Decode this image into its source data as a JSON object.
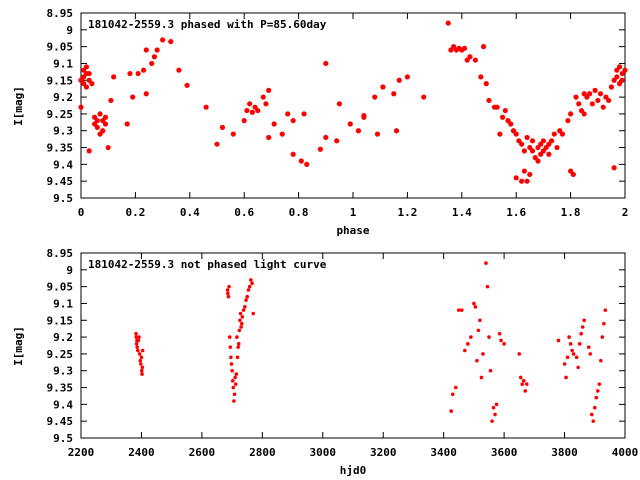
{
  "chart_data": [
    {
      "type": "scatter",
      "title": "181042-2559.3 phased with P=85.60day",
      "xlabel": "phase",
      "ylabel": "I[mag]",
      "xlim": [
        0,
        2
      ],
      "ylim": [
        8.95,
        9.5
      ],
      "y_inverted": true,
      "grid": false,
      "marker_color": "#ff0000",
      "xticks": [
        0,
        0.2,
        0.4,
        0.6,
        0.8,
        1,
        1.2,
        1.4,
        1.6,
        1.8,
        2
      ],
      "xtick_labels": [
        "0",
        "0.2",
        "0.4",
        "0.6",
        "0.8",
        "1",
        "1.2",
        "1.4",
        "1.6",
        "1.8",
        "2"
      ],
      "yticks": [
        8.95,
        9,
        9.05,
        9.1,
        9.15,
        9.2,
        9.25,
        9.3,
        9.35,
        9.4,
        9.45,
        9.5
      ],
      "ytick_labels": [
        "8.95",
        "9",
        "9.05",
        "9.1",
        "9.15",
        "9.2",
        "9.25",
        "9.3",
        "9.35",
        "9.4",
        "9.45",
        "9.5"
      ],
      "points": [
        [
          0.0,
          9.23
        ],
        [
          0.0,
          9.15
        ],
        [
          0.01,
          9.12
        ],
        [
          0.01,
          9.14
        ],
        [
          0.01,
          9.16
        ],
        [
          0.02,
          9.13
        ],
        [
          0.02,
          9.17
        ],
        [
          0.02,
          9.11
        ],
        [
          0.03,
          9.15
        ],
        [
          0.03,
          9.13
        ],
        [
          0.03,
          9.36
        ],
        [
          0.04,
          9.16
        ],
        [
          0.05,
          9.26
        ],
        [
          0.05,
          9.28
        ],
        [
          0.06,
          9.27
        ],
        [
          0.06,
          9.29
        ],
        [
          0.07,
          9.31
        ],
        [
          0.07,
          9.25
        ],
        [
          0.08,
          9.27
        ],
        [
          0.08,
          9.3
        ],
        [
          0.09,
          9.26
        ],
        [
          0.09,
          9.28
        ],
        [
          0.1,
          9.35
        ],
        [
          0.11,
          9.21
        ],
        [
          0.12,
          9.14
        ],
        [
          0.17,
          9.28
        ],
        [
          0.18,
          9.13
        ],
        [
          0.19,
          9.2
        ],
        [
          0.21,
          9.13
        ],
        [
          0.23,
          9.12
        ],
        [
          0.24,
          9.06
        ],
        [
          0.24,
          9.19
        ],
        [
          0.26,
          9.1
        ],
        [
          0.27,
          9.08
        ],
        [
          0.28,
          9.06
        ],
        [
          0.3,
          9.03
        ],
        [
          0.33,
          9.035
        ],
        [
          0.36,
          9.12
        ],
        [
          0.39,
          9.165
        ],
        [
          0.46,
          9.23
        ],
        [
          0.5,
          9.34
        ],
        [
          0.52,
          9.29
        ],
        [
          0.56,
          9.31
        ],
        [
          0.6,
          9.27
        ],
        [
          0.61,
          9.24
        ],
        [
          0.62,
          9.22
        ],
        [
          0.63,
          9.245
        ],
        [
          0.64,
          9.23
        ],
        [
          0.65,
          9.24
        ],
        [
          0.67,
          9.2
        ],
        [
          0.68,
          9.22
        ],
        [
          0.69,
          9.18
        ],
        [
          0.69,
          9.32
        ],
        [
          0.71,
          9.28
        ],
        [
          0.74,
          9.31
        ],
        [
          0.76,
          9.25
        ],
        [
          0.78,
          9.37
        ],
        [
          0.78,
          9.27
        ],
        [
          0.81,
          9.39
        ],
        [
          0.82,
          9.25
        ],
        [
          0.83,
          9.4
        ],
        [
          0.88,
          9.355
        ],
        [
          0.9,
          9.32
        ],
        [
          0.9,
          9.1
        ],
        [
          0.94,
          9.33
        ],
        [
          0.95,
          9.22
        ],
        [
          0.99,
          9.28
        ],
        [
          1.02,
          9.3
        ],
        [
          1.04,
          9.255
        ],
        [
          1.04,
          9.26
        ],
        [
          1.08,
          9.2
        ],
        [
          1.09,
          9.31
        ],
        [
          1.11,
          9.17
        ],
        [
          1.15,
          9.19
        ],
        [
          1.16,
          9.3
        ],
        [
          1.17,
          9.15
        ],
        [
          1.2,
          9.14
        ],
        [
          1.26,
          9.2
        ],
        [
          1.35,
          8.98
        ],
        [
          1.36,
          9.06
        ],
        [
          1.37,
          9.05
        ],
        [
          1.38,
          9.06
        ],
        [
          1.39,
          9.055
        ],
        [
          1.4,
          9.06
        ],
        [
          1.41,
          9.055
        ],
        [
          1.42,
          9.09
        ],
        [
          1.43,
          9.08
        ],
        [
          1.45,
          9.09
        ],
        [
          1.47,
          9.14
        ],
        [
          1.48,
          9.05
        ],
        [
          1.49,
          9.16
        ],
        [
          1.5,
          9.21
        ],
        [
          1.52,
          9.23
        ],
        [
          1.53,
          9.23
        ],
        [
          1.54,
          9.31
        ],
        [
          1.55,
          9.26
        ],
        [
          1.56,
          9.24
        ],
        [
          1.57,
          9.27
        ],
        [
          1.58,
          9.28
        ],
        [
          1.59,
          9.3
        ],
        [
          1.6,
          9.31
        ],
        [
          1.6,
          9.44
        ],
        [
          1.61,
          9.33
        ],
        [
          1.62,
          9.34
        ],
        [
          1.62,
          9.45
        ],
        [
          1.63,
          9.36
        ],
        [
          1.63,
          9.42
        ],
        [
          1.64,
          9.32
        ],
        [
          1.64,
          9.45
        ],
        [
          1.65,
          9.35
        ],
        [
          1.65,
          9.43
        ],
        [
          1.66,
          9.33
        ],
        [
          1.66,
          9.36
        ],
        [
          1.67,
          9.38
        ],
        [
          1.68,
          9.35
        ],
        [
          1.68,
          9.39
        ],
        [
          1.69,
          9.34
        ],
        [
          1.69,
          9.37
        ],
        [
          1.7,
          9.33
        ],
        [
          1.7,
          9.36
        ],
        [
          1.71,
          9.35
        ],
        [
          1.72,
          9.34
        ],
        [
          1.72,
          9.37
        ],
        [
          1.73,
          9.33
        ],
        [
          1.74,
          9.31
        ],
        [
          1.75,
          9.35
        ],
        [
          1.76,
          9.3
        ],
        [
          1.77,
          9.31
        ],
        [
          1.79,
          9.27
        ],
        [
          1.8,
          9.25
        ],
        [
          1.8,
          9.42
        ],
        [
          1.81,
          9.43
        ],
        [
          1.82,
          9.2
        ],
        [
          1.83,
          9.22
        ],
        [
          1.84,
          9.24
        ],
        [
          1.85,
          9.25
        ],
        [
          1.85,
          9.19
        ],
        [
          1.86,
          9.2
        ],
        [
          1.87,
          9.19
        ],
        [
          1.88,
          9.22
        ],
        [
          1.89,
          9.18
        ],
        [
          1.9,
          9.21
        ],
        [
          1.91,
          9.19
        ],
        [
          1.92,
          9.23
        ],
        [
          1.93,
          9.2
        ],
        [
          1.94,
          9.21
        ],
        [
          1.95,
          9.17
        ],
        [
          1.96,
          9.15
        ],
        [
          1.96,
          9.41
        ],
        [
          1.97,
          9.12
        ],
        [
          1.97,
          9.14
        ],
        [
          1.98,
          9.16
        ],
        [
          1.98,
          9.11
        ],
        [
          1.99,
          9.13
        ],
        [
          1.99,
          9.15
        ],
        [
          2.0,
          9.12
        ]
      ]
    },
    {
      "type": "scatter",
      "title": "181042-2559.3 not phased light curve",
      "xlabel": "hjd0",
      "ylabel": "I[mag]",
      "xlim": [
        2200,
        4000
      ],
      "ylim": [
        8.95,
        9.5
      ],
      "y_inverted": true,
      "grid": false,
      "marker_color": "#ff0000",
      "xticks": [
        2200,
        2400,
        2600,
        2800,
        3000,
        3200,
        3400,
        3600,
        3800,
        4000
      ],
      "xtick_labels": [
        "2200",
        "2400",
        "2600",
        "2800",
        "3000",
        "3200",
        "3400",
        "3600",
        "3800",
        "4000"
      ],
      "yticks": [
        8.95,
        9,
        9.05,
        9.1,
        9.15,
        9.2,
        9.25,
        9.3,
        9.35,
        9.4,
        9.45,
        9.5
      ],
      "ytick_labels": [
        "8.95",
        "9",
        "9.05",
        "9.1",
        "9.15",
        "9.2",
        "9.25",
        "9.3",
        "9.35",
        "9.4",
        "9.45",
        "9.5"
      ],
      "points": [
        [
          2382,
          9.19
        ],
        [
          2383,
          9.2
        ],
        [
          2384,
          9.22
        ],
        [
          2385,
          9.21
        ],
        [
          2386,
          9.23
        ],
        [
          2388,
          9.24
        ],
        [
          2390,
          9.21
        ],
        [
          2392,
          9.2
        ],
        [
          2394,
          9.25
        ],
        [
          2396,
          9.27
        ],
        [
          2398,
          9.28
        ],
        [
          2400,
          9.26
        ],
        [
          2401,
          9.3
        ],
        [
          2402,
          9.31
        ],
        [
          2403,
          9.29
        ],
        [
          2404,
          9.24
        ],
        [
          2685,
          9.06
        ],
        [
          2686,
          9.07
        ],
        [
          2688,
          9.08
        ],
        [
          2690,
          9.05
        ],
        [
          2692,
          9.2
        ],
        [
          2694,
          9.23
        ],
        [
          2696,
          9.26
        ],
        [
          2698,
          9.28
        ],
        [
          2700,
          9.3
        ],
        [
          2702,
          9.33
        ],
        [
          2704,
          9.35
        ],
        [
          2706,
          9.39
        ],
        [
          2708,
          9.37
        ],
        [
          2710,
          9.32
        ],
        [
          2712,
          9.34
        ],
        [
          2714,
          9.31
        ],
        [
          2716,
          9.2
        ],
        [
          2718,
          9.26
        ],
        [
          2720,
          9.23
        ],
        [
          2722,
          9.22
        ],
        [
          2724,
          9.18
        ],
        [
          2726,
          9.15
        ],
        [
          2728,
          9.13
        ],
        [
          2730,
          9.17
        ],
        [
          2732,
          9.16
        ],
        [
          2734,
          9.14
        ],
        [
          2738,
          9.12
        ],
        [
          2742,
          9.11
        ],
        [
          2746,
          9.09
        ],
        [
          2750,
          9.08
        ],
        [
          2754,
          9.06
        ],
        [
          2758,
          9.05
        ],
        [
          2762,
          9.03
        ],
        [
          2766,
          9.04
        ],
        [
          2770,
          9.13
        ],
        [
          3425,
          9.42
        ],
        [
          3430,
          9.37
        ],
        [
          3440,
          9.35
        ],
        [
          3450,
          9.12
        ],
        [
          3460,
          9.12
        ],
        [
          3470,
          9.24
        ],
        [
          3480,
          9.22
        ],
        [
          3490,
          9.2
        ],
        [
          3500,
          9.1
        ],
        [
          3505,
          9.11
        ],
        [
          3510,
          9.27
        ],
        [
          3515,
          9.18
        ],
        [
          3520,
          9.15
        ],
        [
          3525,
          9.32
        ],
        [
          3530,
          9.25
        ],
        [
          3540,
          8.98
        ],
        [
          3545,
          9.05
        ],
        [
          3550,
          9.2
        ],
        [
          3555,
          9.3
        ],
        [
          3560,
          9.45
        ],
        [
          3565,
          9.41
        ],
        [
          3570,
          9.43
        ],
        [
          3575,
          9.4
        ],
        [
          3585,
          9.19
        ],
        [
          3590,
          9.21
        ],
        [
          3600,
          9.22
        ],
        [
          3650,
          9.25
        ],
        [
          3655,
          9.32
        ],
        [
          3660,
          9.34
        ],
        [
          3665,
          9.33
        ],
        [
          3670,
          9.36
        ],
        [
          3675,
          9.34
        ],
        [
          3780,
          9.21
        ],
        [
          3800,
          9.28
        ],
        [
          3805,
          9.32
        ],
        [
          3810,
          9.26
        ],
        [
          3815,
          9.2
        ],
        [
          3820,
          9.22
        ],
        [
          3825,
          9.24
        ],
        [
          3830,
          9.25
        ],
        [
          3840,
          9.26
        ],
        [
          3845,
          9.29
        ],
        [
          3850,
          9.22
        ],
        [
          3855,
          9.19
        ],
        [
          3860,
          9.17
        ],
        [
          3865,
          9.15
        ],
        [
          3880,
          9.23
        ],
        [
          3885,
          9.25
        ],
        [
          3890,
          9.43
        ],
        [
          3895,
          9.45
        ],
        [
          3900,
          9.41
        ],
        [
          3905,
          9.38
        ],
        [
          3910,
          9.36
        ],
        [
          3915,
          9.34
        ],
        [
          3920,
          9.27
        ],
        [
          3925,
          9.2
        ],
        [
          3930,
          9.16
        ],
        [
          3935,
          9.12
        ]
      ]
    }
  ]
}
